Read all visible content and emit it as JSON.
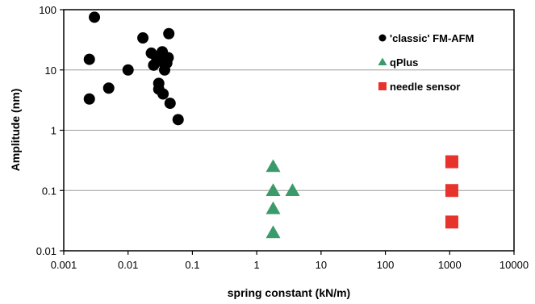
{
  "chart_data": {
    "type": "scatter",
    "xlabel": "spring constant (kN/m)",
    "ylabel": "Amplitude (nm)",
    "x_scale": "log",
    "y_scale": "log",
    "xlim": [
      0.001,
      10000
    ],
    "ylim": [
      0.01,
      100
    ],
    "x_ticks": [
      "0.001",
      "0.01",
      "0.1",
      "1",
      "10",
      "100",
      "1000",
      "10000"
    ],
    "y_ticks": [
      "0.01",
      "0.1",
      "1",
      "10",
      "100"
    ],
    "grid": "horizontal",
    "legend_position": "top-right",
    "series": [
      {
        "name": "'classic' FM-AFM",
        "marker": "circle",
        "color": "#000000",
        "points": [
          {
            "x": 0.003,
            "y": 75
          },
          {
            "x": 0.0025,
            "y": 15
          },
          {
            "x": 0.0025,
            "y": 3.3
          },
          {
            "x": 0.005,
            "y": 5
          },
          {
            "x": 0.01,
            "y": 10
          },
          {
            "x": 0.017,
            "y": 34
          },
          {
            "x": 0.023,
            "y": 19
          },
          {
            "x": 0.025,
            "y": 12
          },
          {
            "x": 0.028,
            "y": 15
          },
          {
            "x": 0.03,
            "y": 6
          },
          {
            "x": 0.03,
            "y": 4.8
          },
          {
            "x": 0.032,
            "y": 14
          },
          {
            "x": 0.034,
            "y": 20
          },
          {
            "x": 0.035,
            "y": 4
          },
          {
            "x": 0.036,
            "y": 17
          },
          {
            "x": 0.037,
            "y": 10
          },
          {
            "x": 0.04,
            "y": 13
          },
          {
            "x": 0.042,
            "y": 16
          },
          {
            "x": 0.043,
            "y": 40
          },
          {
            "x": 0.045,
            "y": 2.8
          },
          {
            "x": 0.06,
            "y": 1.5
          }
        ]
      },
      {
        "name": "qPlus",
        "marker": "triangle",
        "color": "#3a9a6a",
        "points": [
          {
            "x": 1.8,
            "y": 0.25
          },
          {
            "x": 1.8,
            "y": 0.1
          },
          {
            "x": 1.8,
            "y": 0.05
          },
          {
            "x": 1.8,
            "y": 0.02
          },
          {
            "x": 3.6,
            "y": 0.1
          }
        ]
      },
      {
        "name": "needle sensor",
        "marker": "square",
        "color": "#e8322c",
        "points": [
          {
            "x": 1080,
            "y": 0.3
          },
          {
            "x": 1080,
            "y": 0.1
          },
          {
            "x": 1080,
            "y": 0.03
          }
        ]
      }
    ]
  }
}
